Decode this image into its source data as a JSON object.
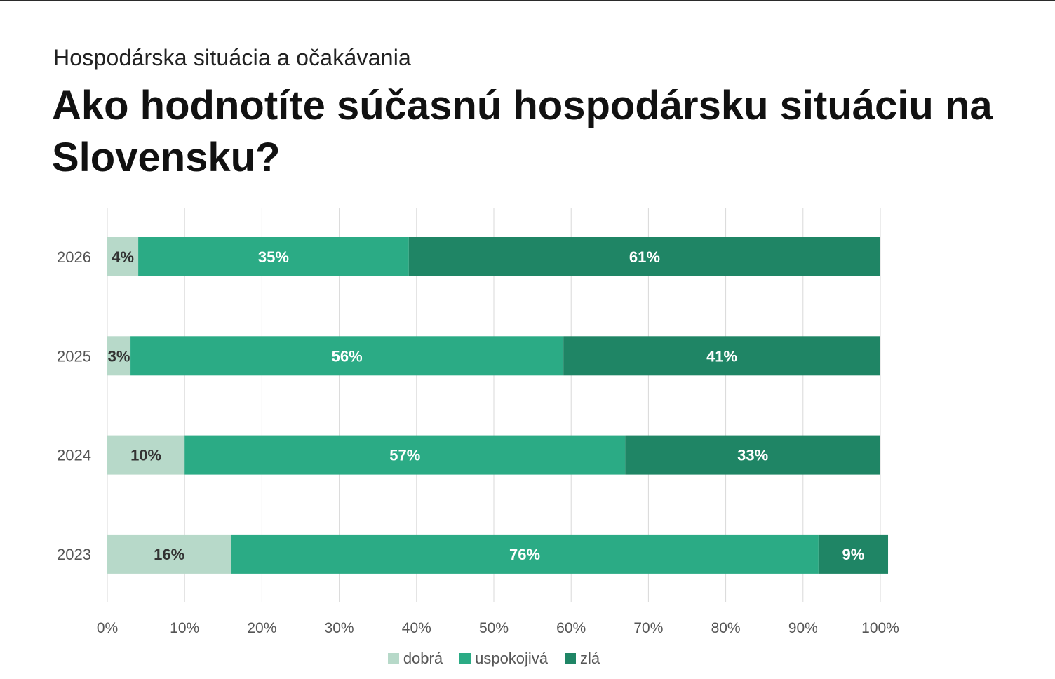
{
  "header": {
    "subtitle": "Hospodárska situácia a očakávania",
    "title": "Ako hodnotíte súčasnú hospodársku situáciu na Slovensku?"
  },
  "chart_data": {
    "type": "bar",
    "orientation": "horizontal",
    "stacked": true,
    "categories": [
      "2026",
      "2025",
      "2024",
      "2023"
    ],
    "series": [
      {
        "name": "dobrá",
        "color": "#b7d9c9",
        "label_color": "#333333",
        "values": [
          4,
          3,
          10,
          16
        ],
        "labels": [
          "4%",
          "3%",
          "10%",
          "16%"
        ]
      },
      {
        "name": "uspokojivá",
        "color": "#2bab85",
        "label_color": "#ffffff",
        "values": [
          35,
          56,
          57,
          76
        ],
        "labels": [
          "35%",
          "56%",
          "57%",
          "76%"
        ]
      },
      {
        "name": "zlá",
        "color": "#1f8565",
        "label_color": "#ffffff",
        "values": [
          61,
          41,
          33,
          9
        ],
        "labels": [
          "61%",
          "41%",
          "33%",
          "9%"
        ]
      }
    ],
    "xlim": [
      0,
      100
    ],
    "xticks": [
      "0%",
      "10%",
      "20%",
      "30%",
      "40%",
      "50%",
      "60%",
      "70%",
      "80%",
      "90%",
      "100%"
    ],
    "grid": true,
    "legend_position": "bottom"
  }
}
